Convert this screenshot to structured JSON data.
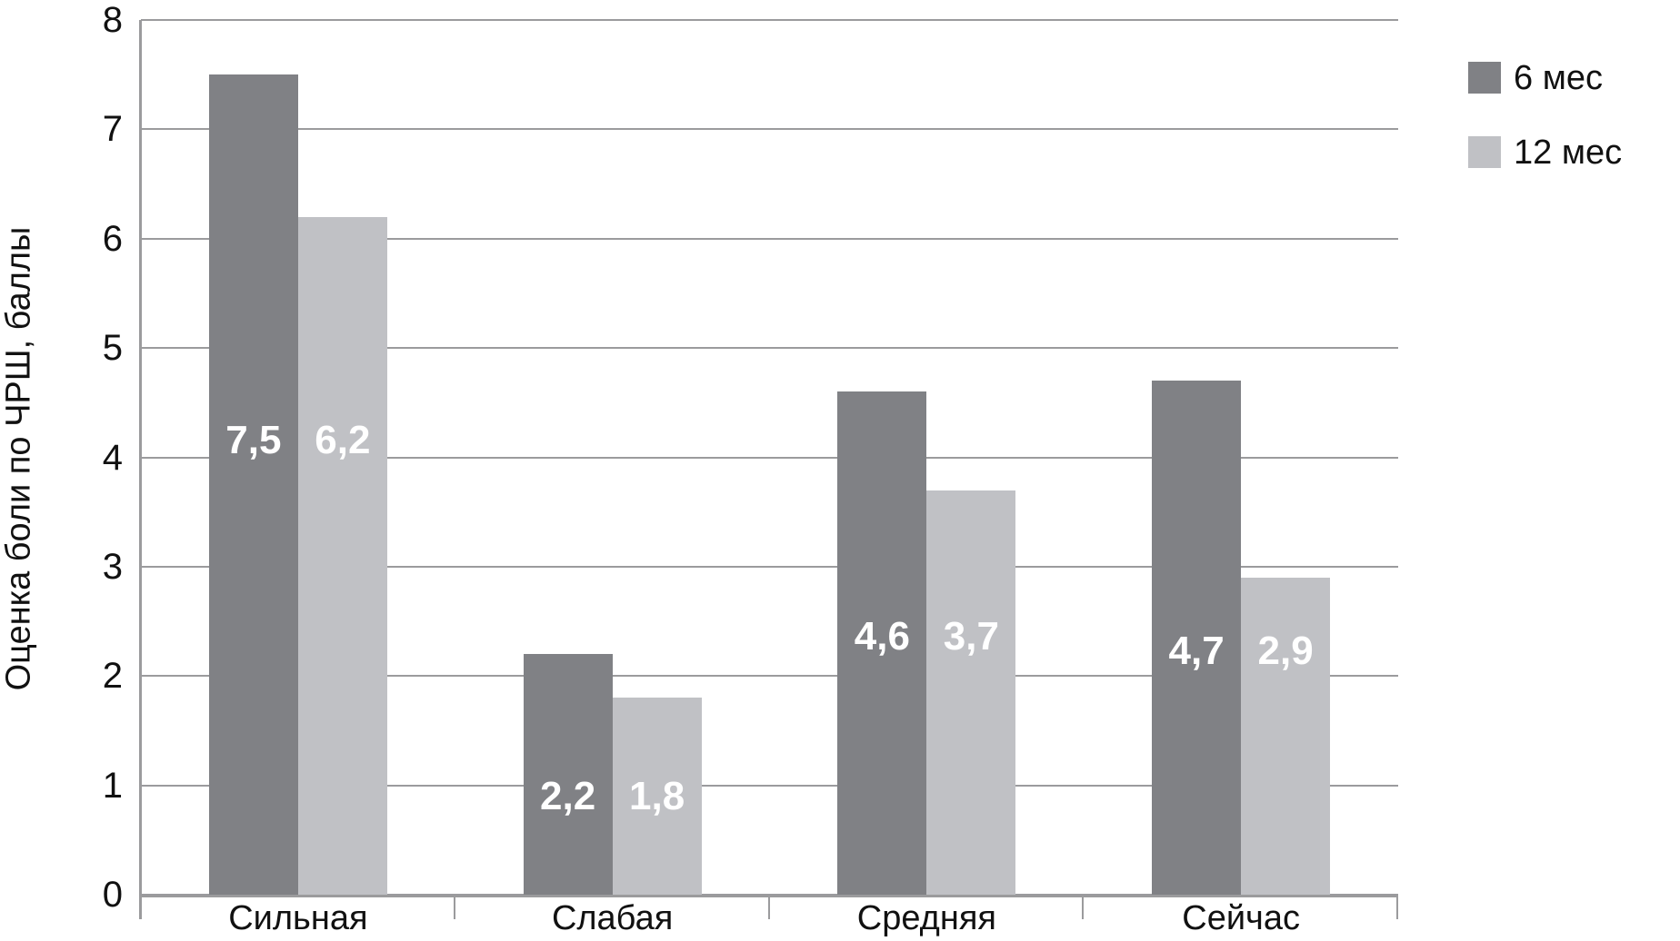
{
  "chart_data": {
    "type": "bar",
    "title": "",
    "ylabel": "Оценка боли по ЧРШ, баллы",
    "xlabel": "",
    "categories": [
      "Сильная",
      "Слабая",
      "Средняя",
      "Сейчас"
    ],
    "series": [
      {
        "name": "6 мес",
        "color": "#808185",
        "values": [
          7.5,
          2.2,
          4.6,
          4.7
        ],
        "labels": [
          "7,5",
          "2,2",
          "4,6",
          "4,7"
        ]
      },
      {
        "name": "12 мес",
        "color": "#c0c1c5",
        "values": [
          6.2,
          1.8,
          3.7,
          2.9
        ],
        "labels": [
          "6,2",
          "1,8",
          "3,7",
          "2,9"
        ]
      }
    ],
    "ylim": [
      0,
      8
    ],
    "yticks": [
      "0",
      "1",
      "2",
      "3",
      "4",
      "5",
      "6",
      "7",
      "8"
    ],
    "grid": true,
    "legend_position": "top-right",
    "value_label_color": "#ffffff",
    "axis_color": "#9b9b9d",
    "text_color": "#111111"
  }
}
